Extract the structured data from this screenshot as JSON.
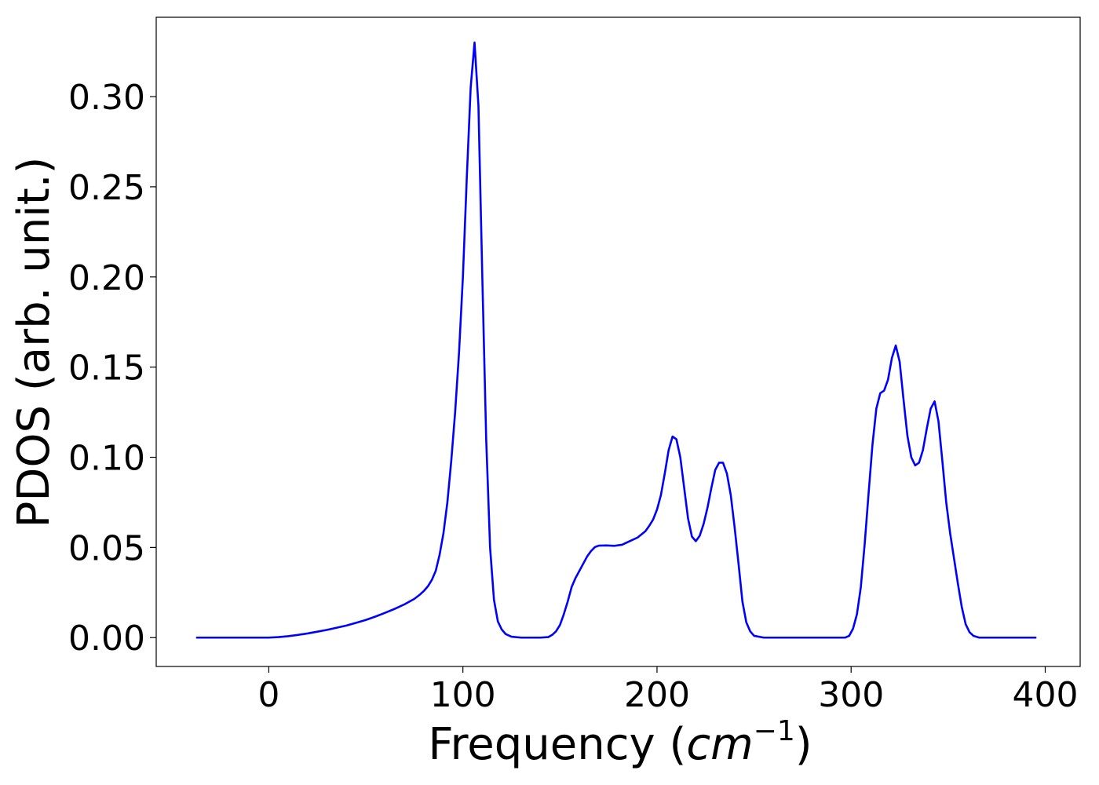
{
  "chart_data": {
    "type": "line",
    "title": "",
    "xlabel": {
      "prefix": "Frequency (",
      "unit_base": "cm",
      "unit_exponent": "−1",
      "suffix": ")"
    },
    "ylabel": "PDOS (arb. unit.)",
    "xlim": [
      -58,
      418
    ],
    "ylim": [
      -0.016,
      0.344
    ],
    "xticks": [
      0,
      100,
      200,
      300,
      400
    ],
    "yticks": [
      0.0,
      0.05,
      0.1,
      0.15,
      0.2,
      0.25,
      0.3
    ],
    "xtick_labels": [
      "0",
      "100",
      "200",
      "300",
      "400"
    ],
    "ytick_labels": [
      "0.00",
      "0.05",
      "0.10",
      "0.15",
      "0.20",
      "0.25",
      "0.30"
    ],
    "grid": false,
    "legend": "none",
    "series": [
      {
        "color": "#0000ff",
        "points": [
          [
            -37,
            0.0
          ],
          [
            -20,
            0.0
          ],
          [
            0,
            0.0
          ],
          [
            5,
            0.0003
          ],
          [
            10,
            0.0008
          ],
          [
            15,
            0.0015
          ],
          [
            20,
            0.0023
          ],
          [
            25,
            0.0033
          ],
          [
            30,
            0.0043
          ],
          [
            35,
            0.0055
          ],
          [
            40,
            0.0067
          ],
          [
            45,
            0.0082
          ],
          [
            50,
            0.0098
          ],
          [
            55,
            0.0117
          ],
          [
            60,
            0.0138
          ],
          [
            65,
            0.016
          ],
          [
            70,
            0.0185
          ],
          [
            75,
            0.0215
          ],
          [
            78,
            0.024
          ],
          [
            80,
            0.026
          ],
          [
            82,
            0.0285
          ],
          [
            84,
            0.032
          ],
          [
            86,
            0.037
          ],
          [
            88,
            0.046
          ],
          [
            90,
            0.058
          ],
          [
            92,
            0.075
          ],
          [
            94,
            0.098
          ],
          [
            96,
            0.125
          ],
          [
            98,
            0.158
          ],
          [
            100,
            0.2
          ],
          [
            102,
            0.255
          ],
          [
            104,
            0.305
          ],
          [
            106,
            0.33
          ],
          [
            108,
            0.295
          ],
          [
            110,
            0.2
          ],
          [
            112,
            0.11
          ],
          [
            114,
            0.05
          ],
          [
            116,
            0.021
          ],
          [
            118,
            0.009
          ],
          [
            120,
            0.0045
          ],
          [
            122,
            0.002
          ],
          [
            125,
            0.0005
          ],
          [
            130,
            0.0
          ],
          [
            140,
            0.0
          ],
          [
            144,
            0.0003
          ],
          [
            146,
            0.0015
          ],
          [
            148,
            0.0035
          ],
          [
            150,
            0.007
          ],
          [
            152,
            0.013
          ],
          [
            154,
            0.02
          ],
          [
            156,
            0.028
          ],
          [
            158,
            0.033
          ],
          [
            160,
            0.037
          ],
          [
            162,
            0.041
          ],
          [
            164,
            0.045
          ],
          [
            166,
            0.048
          ],
          [
            168,
            0.0502
          ],
          [
            170,
            0.051
          ],
          [
            174,
            0.0511
          ],
          [
            178,
            0.0509
          ],
          [
            182,
            0.0515
          ],
          [
            186,
            0.0535
          ],
          [
            190,
            0.0555
          ],
          [
            194,
            0.059
          ],
          [
            196,
            0.062
          ],
          [
            198,
            0.0655
          ],
          [
            200,
            0.071
          ],
          [
            202,
            0.079
          ],
          [
            204,
            0.091
          ],
          [
            206,
            0.104
          ],
          [
            208,
            0.1115
          ],
          [
            210,
            0.11
          ],
          [
            212,
            0.1
          ],
          [
            214,
            0.083
          ],
          [
            216,
            0.066
          ],
          [
            218,
            0.056
          ],
          [
            220,
            0.0535
          ],
          [
            222,
            0.0565
          ],
          [
            224,
            0.063
          ],
          [
            226,
            0.072
          ],
          [
            228,
            0.083
          ],
          [
            230,
            0.093
          ],
          [
            232,
            0.097
          ],
          [
            234,
            0.097
          ],
          [
            236,
            0.091
          ],
          [
            238,
            0.079
          ],
          [
            240,
            0.061
          ],
          [
            242,
            0.041
          ],
          [
            244,
            0.02
          ],
          [
            246,
            0.0085
          ],
          [
            248,
            0.0035
          ],
          [
            250,
            0.001
          ],
          [
            255,
            0.0
          ],
          [
            270,
            0.0
          ],
          [
            290,
            0.0
          ],
          [
            297,
            0.0
          ],
          [
            299,
            0.001
          ],
          [
            301,
            0.005
          ],
          [
            303,
            0.013
          ],
          [
            305,
            0.028
          ],
          [
            307,
            0.052
          ],
          [
            309,
            0.08
          ],
          [
            311,
            0.107
          ],
          [
            313,
            0.127
          ],
          [
            315,
            0.1355
          ],
          [
            317,
            0.137
          ],
          [
            319,
            0.143
          ],
          [
            321,
            0.155
          ],
          [
            323,
            0.162
          ],
          [
            325,
            0.153
          ],
          [
            327,
            0.132
          ],
          [
            329,
            0.112
          ],
          [
            331,
            0.1
          ],
          [
            333,
            0.0955
          ],
          [
            335,
            0.097
          ],
          [
            337,
            0.104
          ],
          [
            339,
            0.116
          ],
          [
            341,
            0.127
          ],
          [
            343,
            0.131
          ],
          [
            345,
            0.12
          ],
          [
            347,
            0.098
          ],
          [
            349,
            0.075
          ],
          [
            351,
            0.058
          ],
          [
            353,
            0.044
          ],
          [
            355,
            0.03
          ],
          [
            357,
            0.017
          ],
          [
            359,
            0.0075
          ],
          [
            361,
            0.003
          ],
          [
            363,
            0.001
          ],
          [
            366,
            0.0
          ],
          [
            380,
            0.0
          ],
          [
            395,
            0.0
          ]
        ]
      }
    ]
  }
}
